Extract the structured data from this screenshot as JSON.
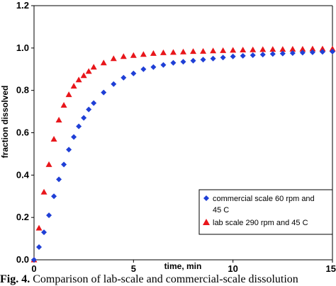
{
  "chart_data": {
    "type": "scatter",
    "xlabel": "time, min",
    "ylabel": "fraction dissolved",
    "xlim": [
      0,
      15
    ],
    "ylim": [
      0,
      1.2
    ],
    "xticks": [
      "0",
      "5",
      "10",
      "15"
    ],
    "yticks": [
      "0.0",
      "0.2",
      "0.4",
      "0.6",
      "0.8",
      "1.0",
      "1.2"
    ],
    "grid": false,
    "legend_position": "bottom-right",
    "series": [
      {
        "name": "commercial scale 60 rpm and 45 C",
        "marker": "diamond",
        "color": "#1f3fd6",
        "x": [
          0,
          0.25,
          0.5,
          0.75,
          1,
          1.25,
          1.5,
          1.75,
          2,
          2.25,
          2.5,
          2.75,
          3,
          3.5,
          4,
          4.5,
          5,
          5.5,
          6,
          6.5,
          7,
          7.5,
          8,
          8.5,
          9,
          9.5,
          10,
          10.5,
          11,
          11.5,
          12,
          12.5,
          13,
          13.5,
          14,
          14.5,
          15
        ],
        "y": [
          0.0,
          0.06,
          0.13,
          0.21,
          0.3,
          0.38,
          0.45,
          0.52,
          0.58,
          0.63,
          0.67,
          0.71,
          0.74,
          0.79,
          0.83,
          0.86,
          0.88,
          0.9,
          0.91,
          0.92,
          0.93,
          0.935,
          0.94,
          0.945,
          0.95,
          0.955,
          0.96,
          0.963,
          0.966,
          0.969,
          0.972,
          0.974,
          0.976,
          0.978,
          0.98,
          0.982,
          0.983
        ]
      },
      {
        "name": "lab scale 290 rpm and 45 C",
        "marker": "triangle",
        "color": "#e8161b",
        "x": [
          0,
          0.25,
          0.5,
          0.75,
          1,
          1.25,
          1.5,
          1.75,
          2,
          2.25,
          2.5,
          2.75,
          3,
          3.5,
          4,
          4.5,
          5,
          5.5,
          6,
          6.5,
          7,
          7.5,
          8,
          8.5,
          9,
          9.5,
          10,
          10.5,
          11,
          11.5,
          12,
          12.5,
          13,
          13.5,
          14,
          14.5,
          15
        ],
        "y": [
          0.0,
          0.15,
          0.32,
          0.45,
          0.57,
          0.66,
          0.73,
          0.78,
          0.82,
          0.85,
          0.87,
          0.89,
          0.91,
          0.93,
          0.95,
          0.96,
          0.965,
          0.97,
          0.975,
          0.978,
          0.98,
          0.982,
          0.984,
          0.985,
          0.987,
          0.988,
          0.99,
          0.991,
          0.992,
          0.993,
          0.994,
          0.994,
          0.995,
          0.995,
          0.996,
          0.996,
          0.996
        ]
      }
    ],
    "legend_entries": [
      "commercial scale 60 rpm and",
      "45 C",
      "lab scale 290 rpm and 45 C"
    ]
  },
  "caption": {
    "label": "Fig. 4.",
    "text": " Comparison of lab-scale and commercial-scale dissolution"
  }
}
